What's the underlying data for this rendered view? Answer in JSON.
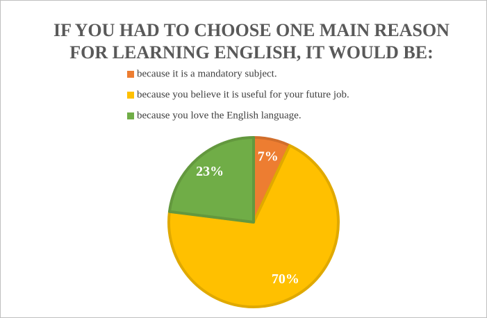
{
  "chart_data": {
    "type": "pie",
    "title": [
      "IF YOU HAD TO CHOOSE ONE MAIN REASON",
      "FOR LEARNING ENGLISH, IT WOULD BE:"
    ],
    "categories": [
      "because it is a mandatory subject.",
      "because you believe it is useful for your future job.",
      "because you love the English language."
    ],
    "values": [
      7,
      70,
      23
    ],
    "value_labels": [
      "7%",
      "70%",
      "23%"
    ],
    "colors": [
      "#ED7D31",
      "#FFC000",
      "#70AD47"
    ],
    "legend": "top"
  }
}
